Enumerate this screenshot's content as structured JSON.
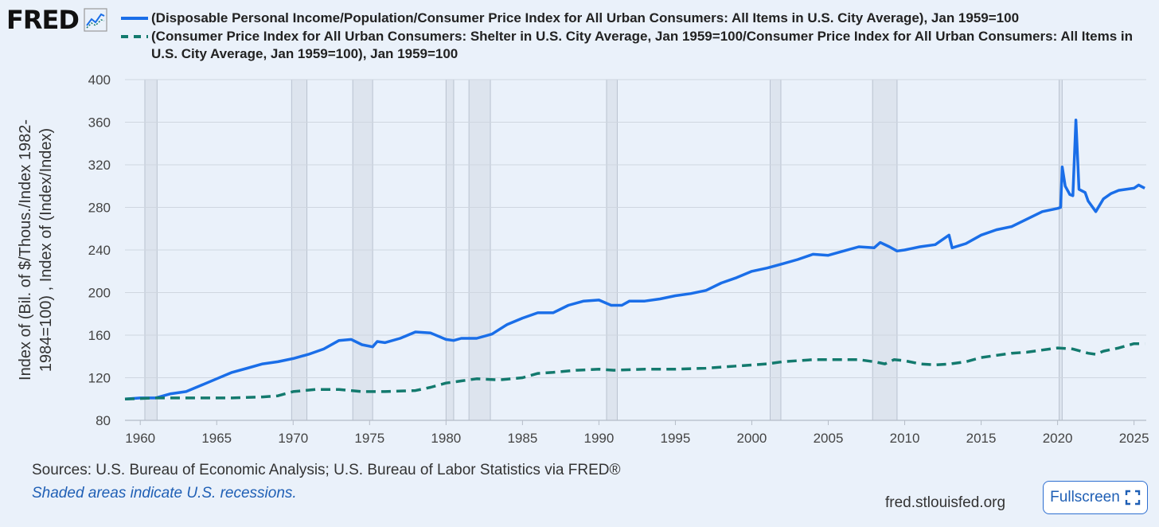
{
  "logo": {
    "text": "FRED"
  },
  "legend": [
    {
      "text": "(Disposable Personal Income/Population/Consumer Price Index for All Urban Consumers: All Items in U.S. City Average), Jan 1959=100",
      "color": "#1a6ee8",
      "style": "solid"
    },
    {
      "text": "(Consumer Price Index for All Urban Consumers: Shelter in U.S. City Average, Jan 1959=100/Consumer Price Index for All Urban Consumers: All Items in U.S. City Average, Jan 1959=100), Jan 1959=100",
      "color": "#137a6e",
      "style": "dashed"
    }
  ],
  "footer": {
    "sources": "Sources: U.S. Bureau of Economic Analysis; U.S. Bureau of Labor Statistics via FRED®",
    "note": "Shaded areas indicate U.S. recessions.",
    "site": "fred.stlouisfed.org",
    "fullscreen_label": "Fullscreen"
  },
  "chart_data": {
    "type": "line",
    "ylabel": "Index of (Bil. of $/Thous./Index 1982-1984=100) , Index of (Index/Index)",
    "xlabel": "",
    "xlim": [
      1959,
      2025.8
    ],
    "ylim": [
      80,
      400
    ],
    "yticks": [
      80,
      120,
      160,
      200,
      240,
      280,
      320,
      360,
      400
    ],
    "xticks": [
      1960,
      1965,
      1970,
      1975,
      1980,
      1985,
      1990,
      1995,
      2000,
      2005,
      2010,
      2015,
      2020,
      2025
    ],
    "grid": true,
    "recessions": [
      [
        1960.3,
        1961.1
      ],
      [
        1969.9,
        1970.9
      ],
      [
        1973.9,
        1975.2
      ],
      [
        1980.0,
        1980.5
      ],
      [
        1981.5,
        1982.9
      ],
      [
        1990.5,
        1991.2
      ],
      [
        2001.2,
        2001.9
      ],
      [
        2007.9,
        2009.5
      ],
      [
        2020.1,
        2020.3
      ]
    ],
    "series": [
      {
        "color": "#1a6ee8",
        "dash": false,
        "points": [
          [
            1959.0,
            100
          ],
          [
            1960.0,
            101
          ],
          [
            1961.0,
            101
          ],
          [
            1962.0,
            105
          ],
          [
            1963.0,
            107
          ],
          [
            1964.0,
            113
          ],
          [
            1965.0,
            119
          ],
          [
            1966.0,
            125
          ],
          [
            1967.0,
            129
          ],
          [
            1968.0,
            133
          ],
          [
            1969.0,
            135
          ],
          [
            1970.0,
            138
          ],
          [
            1971.0,
            142
          ],
          [
            1972.0,
            147
          ],
          [
            1973.0,
            155
          ],
          [
            1973.8,
            156
          ],
          [
            1974.5,
            151
          ],
          [
            1975.2,
            149
          ],
          [
            1975.5,
            154
          ],
          [
            1976.0,
            153
          ],
          [
            1977.0,
            157
          ],
          [
            1978.0,
            163
          ],
          [
            1979.0,
            162
          ],
          [
            1980.0,
            156
          ],
          [
            1980.5,
            155
          ],
          [
            1981.0,
            157
          ],
          [
            1982.0,
            157
          ],
          [
            1983.0,
            161
          ],
          [
            1984.0,
            170
          ],
          [
            1985.0,
            176
          ],
          [
            1986.0,
            181
          ],
          [
            1987.0,
            181
          ],
          [
            1988.0,
            188
          ],
          [
            1989.0,
            192
          ],
          [
            1990.0,
            193
          ],
          [
            1990.8,
            188
          ],
          [
            1991.5,
            188
          ],
          [
            1992.0,
            192
          ],
          [
            1993.0,
            192
          ],
          [
            1994.0,
            194
          ],
          [
            1995.0,
            197
          ],
          [
            1996.0,
            199
          ],
          [
            1997.0,
            202
          ],
          [
            1998.0,
            209
          ],
          [
            1999.0,
            214
          ],
          [
            2000.0,
            220
          ],
          [
            2001.0,
            223
          ],
          [
            2002.0,
            227
          ],
          [
            2003.0,
            231
          ],
          [
            2004.0,
            236
          ],
          [
            2005.0,
            235
          ],
          [
            2006.0,
            239
          ],
          [
            2007.0,
            243
          ],
          [
            2008.0,
            242
          ],
          [
            2008.4,
            247
          ],
          [
            2009.0,
            243
          ],
          [
            2009.5,
            239
          ],
          [
            2010.0,
            240
          ],
          [
            2011.0,
            243
          ],
          [
            2012.0,
            245
          ],
          [
            2012.9,
            254
          ],
          [
            2013.1,
            242
          ],
          [
            2014.0,
            246
          ],
          [
            2015.0,
            254
          ],
          [
            2016.0,
            259
          ],
          [
            2017.0,
            262
          ],
          [
            2018.0,
            269
          ],
          [
            2019.0,
            276
          ],
          [
            2020.0,
            279
          ],
          [
            2020.2,
            280
          ],
          [
            2020.3,
            318
          ],
          [
            2020.5,
            300
          ],
          [
            2020.8,
            292
          ],
          [
            2021.0,
            291
          ],
          [
            2021.2,
            362
          ],
          [
            2021.4,
            297
          ],
          [
            2021.8,
            294
          ],
          [
            2022.0,
            286
          ],
          [
            2022.5,
            276
          ],
          [
            2023.0,
            288
          ],
          [
            2023.5,
            293
          ],
          [
            2024.0,
            296
          ],
          [
            2025.0,
            298
          ],
          [
            2025.3,
            301
          ],
          [
            2025.7,
            298
          ]
        ]
      },
      {
        "color": "#137a6e",
        "dash": true,
        "points": [
          [
            1959.0,
            100
          ],
          [
            1961.0,
            101
          ],
          [
            1963.0,
            101
          ],
          [
            1966.0,
            101
          ],
          [
            1968.0,
            102
          ],
          [
            1969.0,
            103
          ],
          [
            1970.0,
            107
          ],
          [
            1971.5,
            109
          ],
          [
            1973.0,
            109
          ],
          [
            1974.5,
            107
          ],
          [
            1976.0,
            107
          ],
          [
            1978.0,
            108
          ],
          [
            1979.0,
            111
          ],
          [
            1980.0,
            115
          ],
          [
            1981.0,
            117
          ],
          [
            1982.0,
            119
          ],
          [
            1983.5,
            118
          ],
          [
            1985.0,
            120
          ],
          [
            1986.0,
            124
          ],
          [
            1987.0,
            125
          ],
          [
            1988.5,
            127
          ],
          [
            1990.0,
            128
          ],
          [
            1991.0,
            127
          ],
          [
            1993.0,
            128
          ],
          [
            1995.0,
            128
          ],
          [
            1997.0,
            129
          ],
          [
            1999.0,
            131
          ],
          [
            2001.0,
            133
          ],
          [
            2002.0,
            135
          ],
          [
            2003.0,
            136
          ],
          [
            2004.0,
            137
          ],
          [
            2005.0,
            137
          ],
          [
            2006.0,
            137
          ],
          [
            2007.0,
            137
          ],
          [
            2008.0,
            135
          ],
          [
            2008.7,
            133
          ],
          [
            2009.3,
            137
          ],
          [
            2010.0,
            136
          ],
          [
            2011.0,
            133
          ],
          [
            2012.0,
            132
          ],
          [
            2013.0,
            133
          ],
          [
            2014.0,
            135
          ],
          [
            2015.0,
            139
          ],
          [
            2016.0,
            141
          ],
          [
            2017.0,
            143
          ],
          [
            2018.0,
            144
          ],
          [
            2019.0,
            146
          ],
          [
            2020.0,
            148
          ],
          [
            2021.0,
            147
          ],
          [
            2022.0,
            143
          ],
          [
            2022.5,
            142
          ],
          [
            2023.0,
            145
          ],
          [
            2024.0,
            148
          ],
          [
            2025.0,
            152
          ],
          [
            2025.7,
            152
          ]
        ]
      }
    ]
  }
}
